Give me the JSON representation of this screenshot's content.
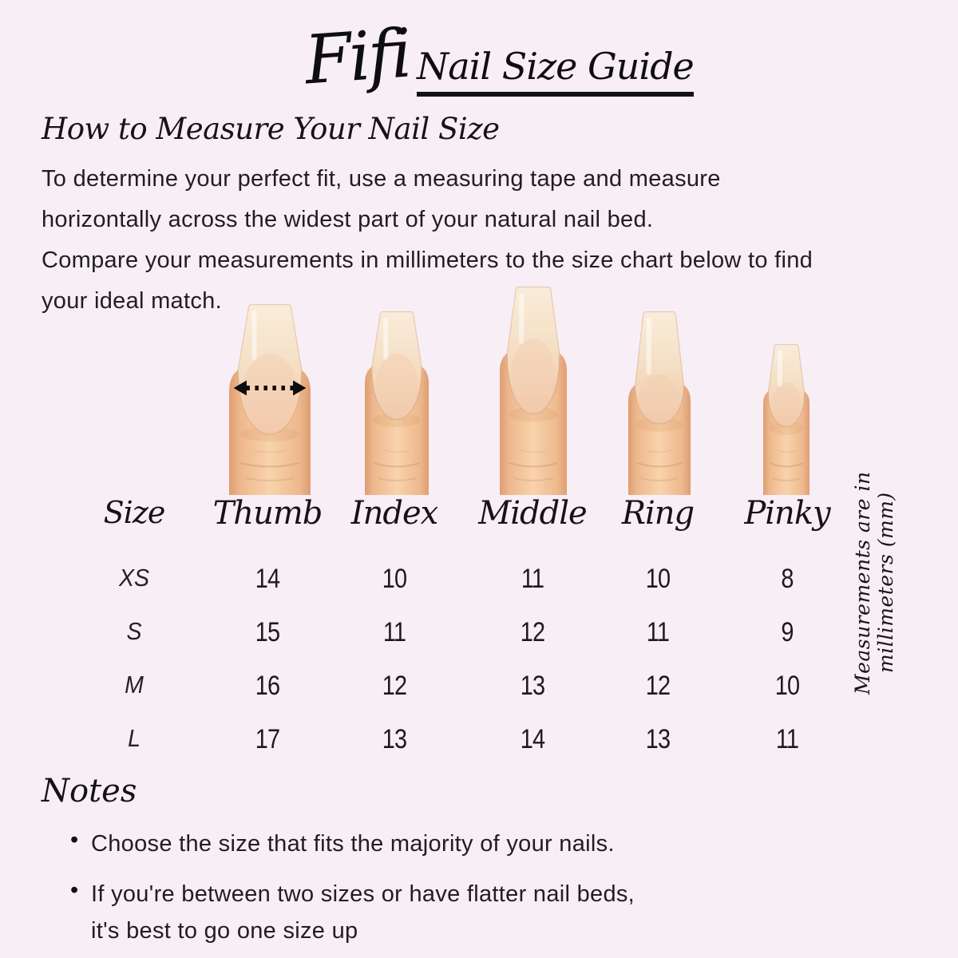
{
  "page": {
    "background": "#f8eef6",
    "text_color": "#1e1e1e"
  },
  "header": {
    "brand": "Fifi",
    "title": "Nail Size Guide"
  },
  "intro": {
    "heading": "How to Measure Your Nail Size",
    "lines": [
      "To determine your perfect fit, use a measuring tape and measure",
      "horizontally across the widest part of your natural nail bed.",
      "Compare your measurements in millimeters to the size chart below to find",
      "your ideal match."
    ]
  },
  "fingers": {
    "labels": [
      "Thumb",
      "Index",
      "Middle",
      "Ring",
      "Pinky"
    ],
    "measure_arrow_icon": "dotted-width-arrow",
    "skin_color": "#f0bf96",
    "nail_color": "#f5e0c6"
  },
  "table": {
    "size_header": "Size",
    "columns": [
      "Thumb",
      "Index",
      "Middle",
      "Ring",
      "Pinky"
    ],
    "rows": [
      {
        "size": "XS",
        "values": [
          "14",
          "10",
          "11",
          "10",
          "8"
        ]
      },
      {
        "size": "S",
        "values": [
          "15",
          "11",
          "12",
          "11",
          "9"
        ]
      },
      {
        "size": "M",
        "values": [
          "16",
          "12",
          "13",
          "12",
          "10"
        ]
      },
      {
        "size": "L",
        "values": [
          "17",
          "13",
          "14",
          "13",
          "11"
        ]
      }
    ],
    "units_note": "Measurements are in millimeters (mm)"
  },
  "notes": {
    "heading": "Notes",
    "bullets": [
      {
        "lines": [
          "Choose the size that fits the majority of your nails."
        ]
      },
      {
        "lines": [
          "If you're between two sizes or have flatter nail beds,",
          "it's best to go one size up"
        ]
      }
    ]
  }
}
